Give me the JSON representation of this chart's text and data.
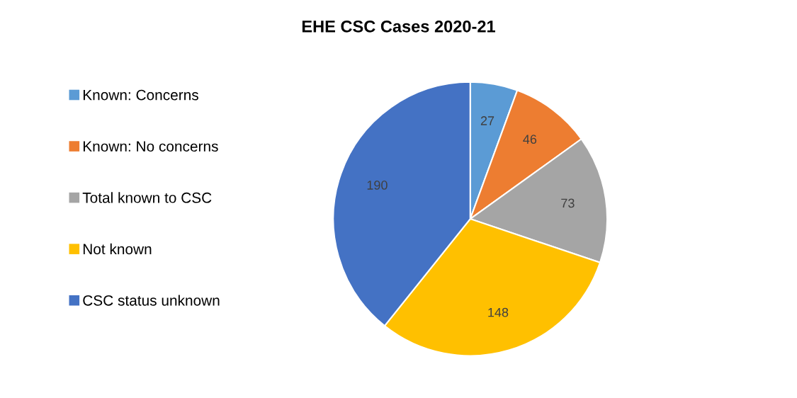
{
  "chart_data": {
    "type": "pie",
    "title": "EHE CSC Cases 2020-21",
    "categories": [
      "Known: Concerns",
      "Known: No concerns",
      "Total known to CSC",
      "Not known",
      "CSC status unknown"
    ],
    "values": [
      27,
      46,
      73,
      148,
      190
    ],
    "colors": [
      "#5b9bd5",
      "#ed7d31",
      "#a5a5a5",
      "#ffc000",
      "#4472c4"
    ],
    "data_labels": true,
    "legend": "left"
  }
}
